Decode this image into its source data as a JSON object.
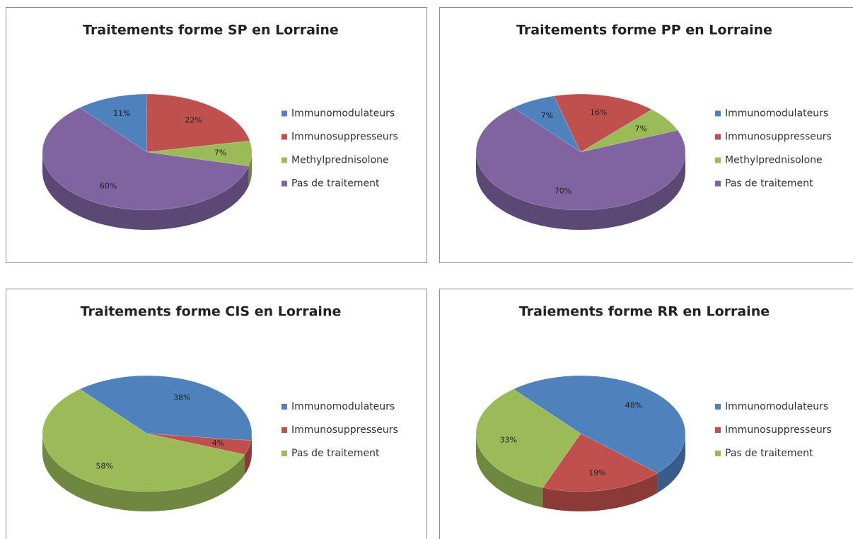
{
  "chart_data": [
    {
      "type": "pie",
      "title": "Traitements forme SP en Lorraine",
      "categories": [
        "Immunomodulateurs",
        "Immunosuppresseurs",
        "Methylprednisolone",
        "Pas de traitement"
      ],
      "values": [
        11,
        22,
        7,
        60
      ],
      "value_labels": [
        "11%",
        "22%",
        "7%",
        "60%"
      ],
      "colors": [
        "#4f81bd",
        "#c0504d",
        "#9bbb59",
        "#8064a2"
      ],
      "legend": "right"
    },
    {
      "type": "pie",
      "title": "Traitements forme PP en Lorraine",
      "categories": [
        "Immunomodulateurs",
        "Immunosuppresseurs",
        "Methylprednisolone",
        "Pas de traitement"
      ],
      "values": [
        7,
        16,
        7,
        70
      ],
      "value_labels": [
        "7%",
        "16%",
        "7%",
        "70%"
      ],
      "colors": [
        "#4f81bd",
        "#c0504d",
        "#9bbb59",
        "#8064a2"
      ],
      "legend": "right"
    },
    {
      "type": "pie",
      "title": "Traitements forme CIS en Lorraine",
      "categories": [
        "Immunomodulateurs",
        "Immunosuppresseurs",
        "Pas de traitement"
      ],
      "values": [
        38,
        4,
        58
      ],
      "value_labels": [
        "38%",
        "4%",
        "58%"
      ],
      "colors": [
        "#4f81bd",
        "#c0504d",
        "#9bbb59"
      ],
      "legend": "right"
    },
    {
      "type": "pie",
      "title": "Traiements forme RR en Lorraine",
      "categories": [
        "Immunomodulateurs",
        "Immunosuppresseurs",
        "Pas de traitement"
      ],
      "values": [
        48,
        19,
        33
      ],
      "value_labels": [
        "48%",
        "19%",
        "33%"
      ],
      "colors": [
        "#4f81bd",
        "#c0504d",
        "#9bbb59"
      ],
      "legend": "right"
    }
  ]
}
